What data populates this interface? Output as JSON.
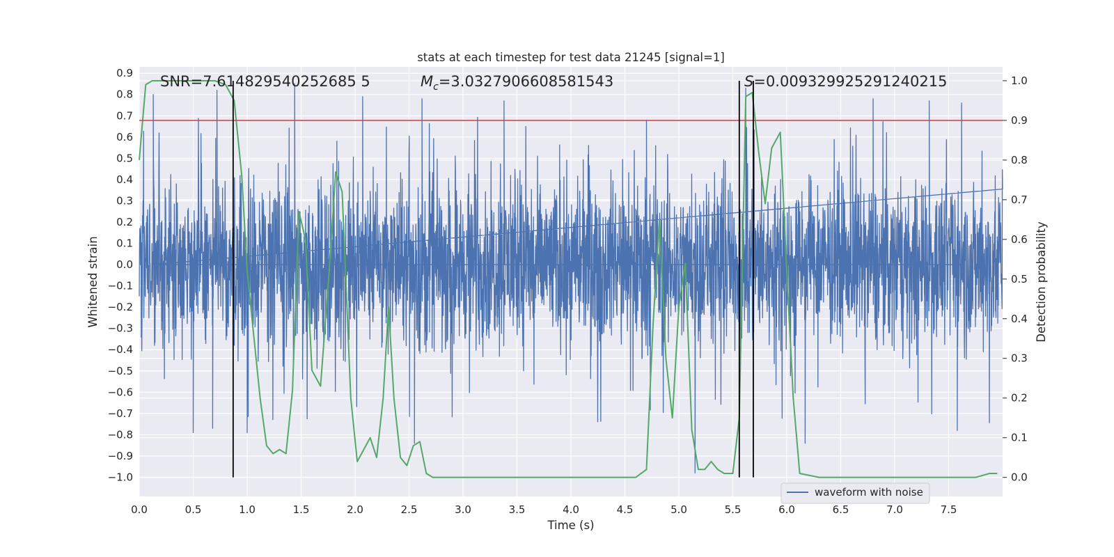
{
  "chart_data": {
    "type": "line",
    "title": "stats at each timestep for test data 21245 [signal=1]",
    "xlabel": "Time (s)",
    "ylabel": "Whitened strain",
    "y2label": "Detection probability",
    "xlim": [
      0.0,
      8.0
    ],
    "ylim": [
      -1.09,
      0.93
    ],
    "y2lim": [
      -0.048,
      1.035
    ],
    "xticks": [
      "0.0",
      "0.5",
      "1.0",
      "1.5",
      "2.0",
      "2.5",
      "3.0",
      "3.5",
      "4.0",
      "4.5",
      "5.0",
      "5.5",
      "6.0",
      "6.5",
      "7.0",
      "7.5"
    ],
    "yticks": [
      "0.9",
      "0.8",
      "0.7",
      "0.6",
      "0.5",
      "0.4",
      "0.3",
      "0.2",
      "0.1",
      "0.0",
      "-0.1",
      "-0.2",
      "-0.3",
      "-0.4",
      "-0.5",
      "-0.6",
      "-0.7",
      "-0.8",
      "-0.9",
      "-1.0"
    ],
    "y2ticks": [
      "1.0",
      "0.9",
      "0.8",
      "0.7",
      "0.6",
      "0.5",
      "0.4",
      "0.3",
      "0.2",
      "0.1",
      "0.0"
    ],
    "grid": true,
    "legend_position": "bottom-right",
    "annotations": {
      "snr": "SNR=7.614829540252685 5",
      "mc_symbol": "M",
      "mc_sub": "c",
      "mc_value": "=3.0327906608581543",
      "s_symbol": "S",
      "s_value": "=0.009329925291240215"
    },
    "threshold": 0.9,
    "vertical_lines": [
      0.87,
      5.56,
      5.69
    ],
    "series": [
      {
        "name": "waveform with noise",
        "color": "#4c72b0",
        "kind": "noise",
        "band": [
          -0.25,
          0.3
        ],
        "peaks": [
          [
            0.13,
            0.8
          ],
          [
            0.72,
            0.82
          ],
          [
            1.44,
            0.85
          ],
          [
            2.07,
            0.79
          ],
          [
            2.62,
            0.78
          ],
          [
            3.38,
            0.77
          ],
          [
            4.7,
            0.68
          ],
          [
            5.62,
            0.83
          ],
          [
            6.8,
            0.78
          ],
          [
            7.32,
            0.77
          ],
          [
            7.62,
            0.76
          ],
          [
            0.5,
            -0.79
          ],
          [
            1.0,
            -0.79
          ],
          [
            2.55,
            -0.84
          ],
          [
            5.15,
            -0.98
          ],
          [
            6.17,
            -0.84
          ],
          [
            7.58,
            -0.78
          ],
          [
            0.68,
            -0.77
          ]
        ]
      },
      {
        "name": "",
        "color": "#55a868",
        "kind": "probability",
        "x": [
          0.0,
          0.06,
          0.12,
          0.2,
          0.3,
          0.4,
          0.5,
          0.6,
          0.7,
          0.8,
          0.88,
          0.95,
          1.0,
          1.06,
          1.12,
          1.18,
          1.24,
          1.3,
          1.36,
          1.42,
          1.48,
          1.54,
          1.6,
          1.68,
          1.76,
          1.82,
          1.88,
          1.96,
          2.02,
          2.08,
          2.14,
          2.2,
          2.26,
          2.31,
          2.36,
          2.42,
          2.48,
          2.54,
          2.6,
          2.66,
          2.72,
          2.8,
          3.0,
          3.2,
          3.4,
          3.6,
          3.8,
          4.0,
          4.2,
          4.4,
          4.6,
          4.7,
          4.76,
          4.82,
          4.88,
          4.94,
          5.0,
          5.06,
          5.12,
          5.18,
          5.24,
          5.3,
          5.36,
          5.42,
          5.5,
          5.56,
          5.62,
          5.68,
          5.74,
          5.8,
          5.86,
          5.94,
          6.0,
          6.06,
          6.12,
          6.3,
          6.6,
          7.0,
          7.4,
          7.6,
          7.75,
          7.88,
          7.95
        ],
        "values": [
          0.8,
          0.99,
          1.0,
          1.0,
          1.0,
          1.0,
          1.0,
          1.0,
          1.0,
          0.99,
          0.95,
          0.76,
          0.52,
          0.36,
          0.2,
          0.08,
          0.06,
          0.07,
          0.06,
          0.22,
          0.67,
          0.6,
          0.27,
          0.23,
          0.52,
          0.77,
          0.72,
          0.2,
          0.04,
          0.07,
          0.1,
          0.05,
          0.2,
          0.43,
          0.2,
          0.05,
          0.03,
          0.08,
          0.09,
          0.01,
          0.0,
          0.0,
          0.0,
          0.0,
          0.0,
          0.0,
          0.0,
          0.0,
          0.0,
          0.0,
          0.0,
          0.02,
          0.38,
          0.65,
          0.3,
          0.15,
          0.43,
          0.54,
          0.12,
          0.02,
          0.02,
          0.04,
          0.02,
          0.01,
          0.01,
          0.15,
          0.96,
          0.97,
          0.82,
          0.69,
          0.83,
          0.87,
          0.52,
          0.2,
          0.01,
          0.0,
          0.0,
          0.0,
          0.0,
          0.0,
          0.0,
          0.01,
          0.01
        ]
      }
    ]
  }
}
